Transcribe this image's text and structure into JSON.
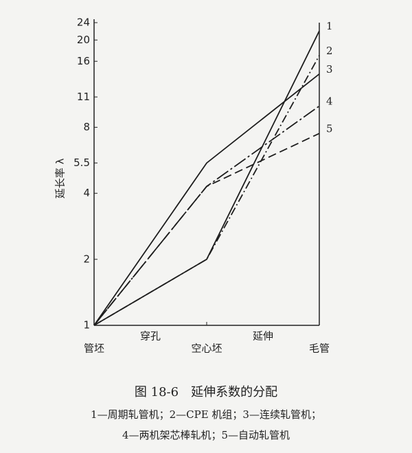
{
  "chart_data": {
    "type": "line",
    "ylabel": "延长率 λ",
    "categories": [
      "管坯",
      "空心坯",
      "毛管"
    ],
    "stage_labels": [
      "穿孔",
      "延伸"
    ],
    "log_scale": true,
    "ylim": [
      1,
      24
    ],
    "yticks": [
      1,
      2,
      4,
      5.5,
      8,
      11,
      16,
      20,
      24
    ],
    "series": [
      {
        "name": "1",
        "color": "#1e1e1e",
        "style": "solid",
        "values": [
          1,
          2,
          22
        ]
      },
      {
        "name": "2",
        "color": "#1e1e1e",
        "style": "dashdot",
        "values": [
          1,
          2,
          17
        ]
      },
      {
        "name": "3",
        "color": "#1e1e1e",
        "style": "solid",
        "values": [
          1,
          5.5,
          14
        ]
      },
      {
        "name": "4",
        "color": "#1e1e1e",
        "style": "longdashdot",
        "values": [
          1,
          4.3,
          10
        ]
      },
      {
        "name": "5",
        "color": "#1e1e1e",
        "style": "dashed",
        "values": [
          1,
          4.3,
          7.5
        ]
      }
    ],
    "caption": "图 18-6　延伸系数的分配",
    "legend_lines": [
      "1—周期轧管机；2—CPE 机组；3—连续轧管机；",
      "4—两机架芯棒轧机；5—自动轧管机"
    ]
  }
}
